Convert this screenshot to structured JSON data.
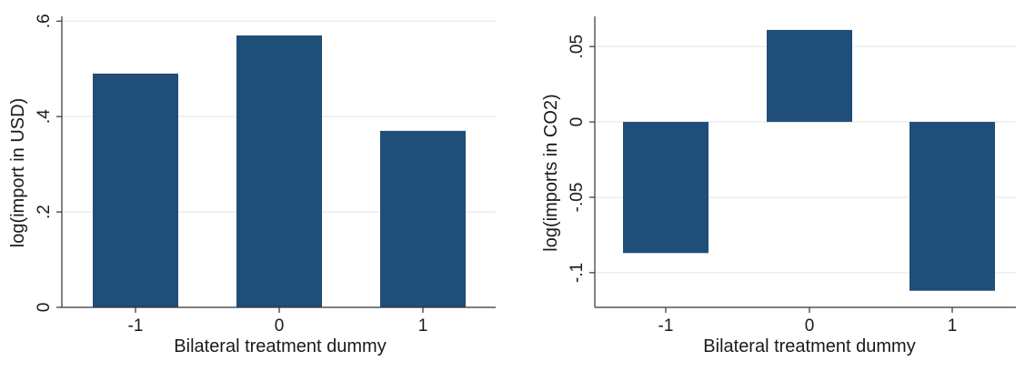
{
  "chart_data": [
    {
      "type": "bar",
      "title": "",
      "xlabel": "Bilateral treatment dummy",
      "ylabel": "log(import in USD)",
      "categories": [
        "-1",
        "0",
        "1"
      ],
      "values": [
        0.49,
        0.57,
        0.37
      ],
      "ylim": [
        0,
        0.6
      ],
      "yticks": [
        0,
        0.2,
        0.4,
        0.6
      ],
      "ytick_labels": [
        "0",
        ".2",
        ".4",
        ".6"
      ],
      "grid": true,
      "bar_color": "#1f4e79"
    },
    {
      "type": "bar",
      "title": "",
      "xlabel": "Bilateral treatment dummy",
      "ylabel": "log(imports in CO2)",
      "categories": [
        "-1",
        "0",
        "1"
      ],
      "values": [
        -0.087,
        0.061,
        -0.112
      ],
      "ylim": [
        -0.12,
        0.07
      ],
      "yticks": [
        -0.1,
        -0.05,
        0,
        0.05
      ],
      "ytick_labels": [
        "-.1",
        "-.05",
        "0",
        ".05"
      ],
      "grid": true,
      "bar_color": "#1f4e79"
    }
  ],
  "colors": {
    "bar": "#1f4e79",
    "grid": "#e3e3e3",
    "axis": "#333333"
  }
}
